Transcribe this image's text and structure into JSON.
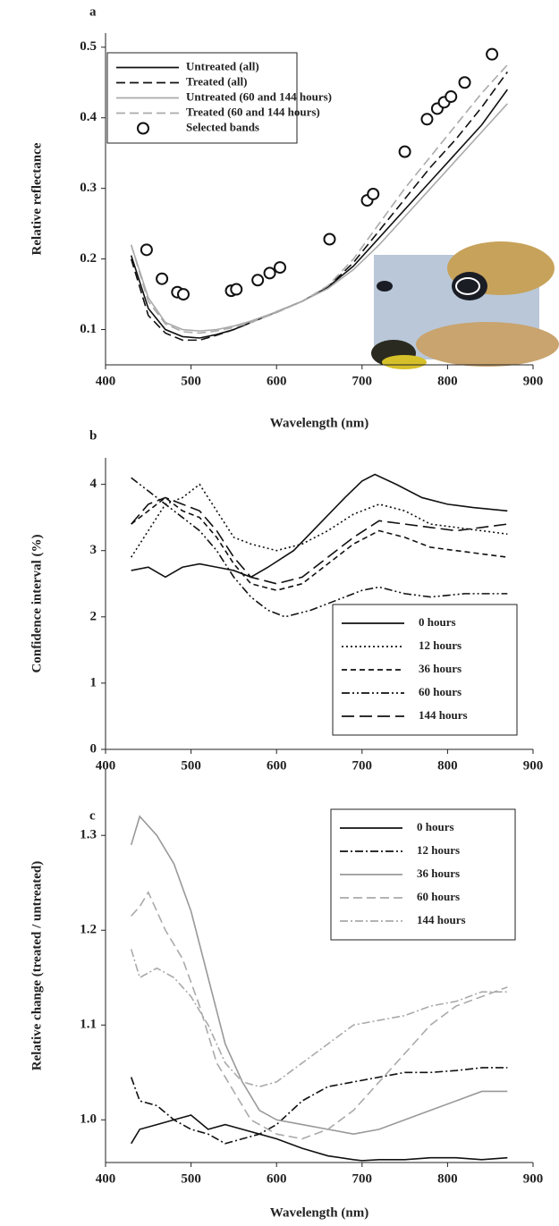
{
  "chart_data": [
    {
      "type": "line",
      "label": "a",
      "xlabel": "Wavelength (nm)",
      "ylabel": "Relative reflectance",
      "xlim": [
        400,
        900
      ],
      "xticks": [
        400,
        500,
        600,
        700,
        800,
        900
      ],
      "ylim": [
        0.05,
        0.52
      ],
      "yticks": [
        0.1,
        0.2,
        0.3,
        0.4,
        0.5
      ],
      "legend": "upper left",
      "series": [
        {
          "name": "Untreated (all)",
          "color": "#111111",
          "style": "solid",
          "x": [
            430,
            450,
            470,
            490,
            510,
            530,
            550,
            570,
            600,
            630,
            660,
            690,
            720,
            750,
            780,
            810,
            840,
            870
          ],
          "values": [
            0.205,
            0.13,
            0.1,
            0.09,
            0.088,
            0.093,
            0.1,
            0.11,
            0.125,
            0.14,
            0.16,
            0.19,
            0.23,
            0.27,
            0.31,
            0.35,
            0.39,
            0.44
          ]
        },
        {
          "name": "Treated (all)",
          "color": "#111111",
          "style": "dashed",
          "x": [
            430,
            450,
            470,
            490,
            510,
            530,
            550,
            570,
            600,
            630,
            660,
            690,
            720,
            750,
            780,
            810,
            840,
            870
          ],
          "values": [
            0.2,
            0.12,
            0.095,
            0.085,
            0.085,
            0.092,
            0.1,
            0.11,
            0.125,
            0.14,
            0.16,
            0.195,
            0.24,
            0.285,
            0.33,
            0.37,
            0.415,
            0.465
          ]
        },
        {
          "name": "Untreated (60 and 144 hours)",
          "color": "#aaaaaa",
          "style": "solid",
          "x": [
            430,
            450,
            470,
            490,
            510,
            530,
            550,
            570,
            600,
            630,
            660,
            690,
            720,
            750,
            780,
            810,
            840,
            870
          ],
          "values": [
            0.22,
            0.145,
            0.11,
            0.1,
            0.098,
            0.1,
            0.105,
            0.112,
            0.125,
            0.14,
            0.158,
            0.185,
            0.22,
            0.26,
            0.3,
            0.34,
            0.38,
            0.42
          ]
        },
        {
          "name": "Treated (60 and 144 hours)",
          "color": "#aaaaaa",
          "style": "dashed",
          "x": [
            430,
            450,
            470,
            490,
            510,
            530,
            550,
            570,
            600,
            630,
            660,
            690,
            720,
            750,
            780,
            810,
            840,
            870
          ],
          "values": [
            0.22,
            0.14,
            0.108,
            0.097,
            0.095,
            0.098,
            0.103,
            0.11,
            0.124,
            0.14,
            0.162,
            0.2,
            0.25,
            0.3,
            0.345,
            0.39,
            0.435,
            0.475
          ]
        },
        {
          "name": "Selected bands",
          "color": "#111111",
          "type": "scatter",
          "x": [
            448,
            466,
            484,
            491,
            547,
            553,
            578,
            592,
            604,
            662,
            706,
            713,
            750,
            776,
            788,
            796,
            804,
            820,
            852
          ],
          "values": [
            0.213,
            0.172,
            0.153,
            0.15,
            0.155,
            0.157,
            0.17,
            0.18,
            0.188,
            0.228,
            0.283,
            0.292,
            0.352,
            0.398,
            0.413,
            0.422,
            0.43,
            0.45,
            0.49
          ]
        }
      ]
    },
    {
      "type": "line",
      "label": "b",
      "ylabel": "Confidence interval (%)",
      "xlim": [
        400,
        900
      ],
      "xticks": [
        400,
        500,
        600,
        700,
        800,
        900
      ],
      "ylim": [
        0,
        4.4
      ],
      "yticks": [
        0,
        1,
        2,
        3,
        4
      ],
      "legend": "lower right",
      "series": [
        {
          "name": "0 hours",
          "color": "#111111",
          "style": "solid",
          "x": [
            430,
            450,
            470,
            490,
            510,
            530,
            550,
            570,
            590,
            620,
            650,
            680,
            700,
            715,
            740,
            770,
            800,
            830,
            870
          ],
          "values": [
            2.7,
            2.75,
            2.6,
            2.75,
            2.8,
            2.75,
            2.7,
            2.6,
            2.75,
            3.0,
            3.4,
            3.8,
            4.05,
            4.15,
            4.0,
            3.8,
            3.7,
            3.65,
            3.6
          ]
        },
        {
          "name": "12 hours",
          "color": "#111111",
          "style": "dotted",
          "x": [
            430,
            450,
            470,
            490,
            510,
            530,
            550,
            570,
            600,
            630,
            660,
            690,
            720,
            750,
            780,
            810,
            840,
            870
          ],
          "values": [
            2.9,
            3.3,
            3.7,
            3.8,
            4.0,
            3.6,
            3.2,
            3.1,
            3.0,
            3.1,
            3.3,
            3.55,
            3.7,
            3.6,
            3.4,
            3.35,
            3.3,
            3.25
          ]
        },
        {
          "name": "36 hours",
          "color": "#111111",
          "style": "shortdash",
          "x": [
            430,
            450,
            470,
            490,
            510,
            530,
            550,
            570,
            600,
            630,
            660,
            690,
            720,
            750,
            780,
            810,
            840,
            870
          ],
          "values": [
            3.4,
            3.6,
            3.8,
            3.6,
            3.5,
            3.2,
            2.8,
            2.5,
            2.4,
            2.5,
            2.8,
            3.1,
            3.3,
            3.2,
            3.05,
            3.0,
            2.95,
            2.9
          ]
        },
        {
          "name": "60 hours",
          "color": "#111111",
          "style": "dashdotdot",
          "x": [
            430,
            450,
            470,
            490,
            510,
            530,
            550,
            570,
            590,
            610,
            640,
            670,
            700,
            720,
            750,
            780,
            820,
            870
          ],
          "values": [
            4.1,
            3.9,
            3.7,
            3.5,
            3.3,
            3.0,
            2.6,
            2.3,
            2.1,
            2.0,
            2.1,
            2.25,
            2.4,
            2.45,
            2.35,
            2.3,
            2.35,
            2.35
          ]
        },
        {
          "name": "144 hours",
          "color": "#111111",
          "style": "longdash",
          "x": [
            430,
            450,
            470,
            490,
            510,
            530,
            550,
            570,
            600,
            630,
            660,
            690,
            720,
            750,
            780,
            810,
            840,
            870
          ],
          "values": [
            3.4,
            3.7,
            3.8,
            3.7,
            3.6,
            3.3,
            2.9,
            2.6,
            2.5,
            2.6,
            2.9,
            3.2,
            3.45,
            3.4,
            3.35,
            3.3,
            3.35,
            3.4
          ]
        }
      ]
    },
    {
      "type": "line",
      "label": "c",
      "xlabel": "Wavelength (nm)",
      "ylabel": "Relative change (treated / untreated)",
      "xlim": [
        400,
        900
      ],
      "xticks": [
        400,
        500,
        600,
        700,
        800,
        900
      ],
      "ylim": [
        0.955,
        1.37
      ],
      "yticks": [
        {
          "value": 1,
          "label": "1.0"
        },
        1.1,
        1.2,
        1.3
      ],
      "legend": "upper right",
      "series": [
        {
          "name": "0 hours",
          "color": "#111111",
          "style": "solid",
          "x": [
            430,
            440,
            460,
            480,
            500,
            520,
            540,
            560,
            580,
            600,
            630,
            660,
            690,
            700,
            720,
            750,
            780,
            810,
            840,
            870
          ],
          "values": [
            0.975,
            0.99,
            0.995,
            1.0,
            1.005,
            0.99,
            0.995,
            0.99,
            0.985,
            0.98,
            0.97,
            0.962,
            0.958,
            0.957,
            0.958,
            0.958,
            0.96,
            0.96,
            0.958,
            0.96
          ]
        },
        {
          "name": "12 hours",
          "color": "#111111",
          "style": "dashdot",
          "x": [
            430,
            440,
            460,
            480,
            500,
            520,
            540,
            560,
            580,
            600,
            630,
            660,
            690,
            720,
            750,
            780,
            810,
            840,
            870
          ],
          "values": [
            1.045,
            1.02,
            1.015,
            1.0,
            0.99,
            0.985,
            0.975,
            0.98,
            0.985,
            0.995,
            1.02,
            1.035,
            1.04,
            1.045,
            1.05,
            1.05,
            1.052,
            1.055,
            1.055
          ]
        },
        {
          "name": "36 hours",
          "color": "#999999",
          "style": "solid",
          "x": [
            430,
            440,
            460,
            480,
            500,
            520,
            540,
            560,
            580,
            600,
            630,
            660,
            690,
            720,
            750,
            780,
            810,
            840,
            870
          ],
          "values": [
            1.29,
            1.32,
            1.3,
            1.27,
            1.22,
            1.15,
            1.08,
            1.04,
            1.01,
            1.0,
            0.995,
            0.99,
            0.985,
            0.99,
            1.0,
            1.01,
            1.02,
            1.03,
            1.03
          ]
        },
        {
          "name": "60 hours",
          "color": "#aaaaaa",
          "style": "dashed",
          "x": [
            430,
            440,
            450,
            470,
            490,
            510,
            530,
            550,
            570,
            600,
            630,
            660,
            690,
            720,
            750,
            780,
            810,
            840,
            870
          ],
          "values": [
            1.215,
            1.225,
            1.24,
            1.2,
            1.17,
            1.12,
            1.06,
            1.03,
            1.0,
            0.985,
            0.98,
            0.99,
            1.01,
            1.04,
            1.07,
            1.1,
            1.12,
            1.13,
            1.14
          ]
        },
        {
          "name": "144 hours",
          "color": "#aaaaaa",
          "style": "dashdot",
          "x": [
            430,
            440,
            460,
            480,
            500,
            520,
            540,
            560,
            580,
            600,
            630,
            660,
            690,
            720,
            750,
            780,
            810,
            840,
            870
          ],
          "values": [
            1.18,
            1.15,
            1.16,
            1.15,
            1.13,
            1.1,
            1.06,
            1.04,
            1.035,
            1.04,
            1.06,
            1.08,
            1.1,
            1.105,
            1.11,
            1.12,
            1.125,
            1.135,
            1.135
          ]
        }
      ]
    }
  ]
}
